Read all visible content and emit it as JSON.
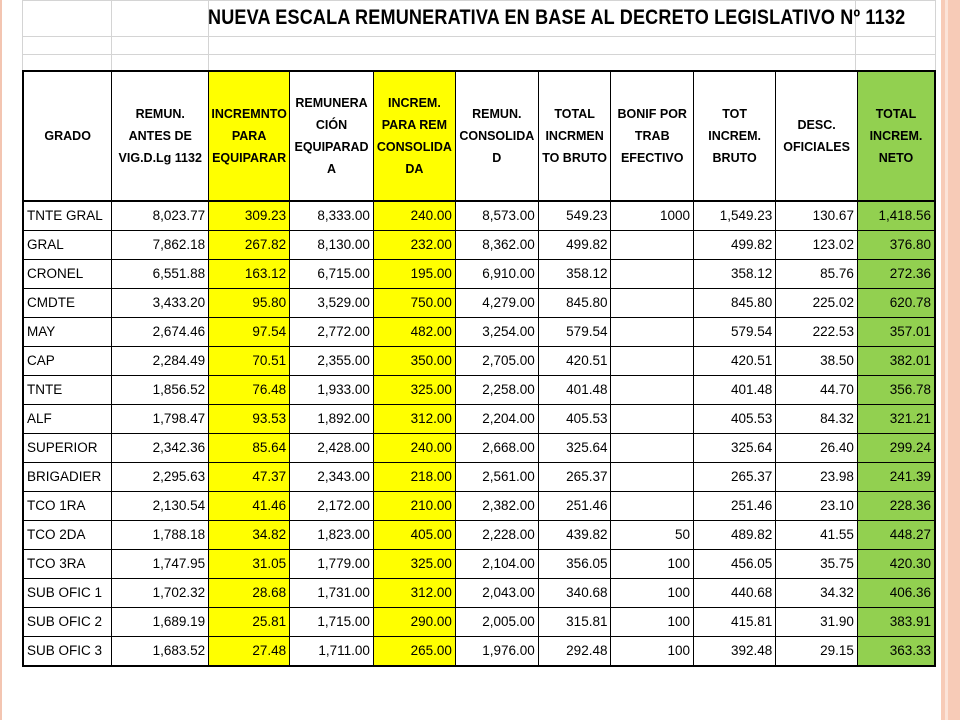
{
  "title": "NUEVA ESCALA REMUNERATIVA EN BASE AL DECRETO LEGISLATIVO Nº 1132",
  "colors": {
    "yellow_highlight": "#ffff00",
    "green_highlight": "#92d050",
    "slide_border": "#f7cbb7"
  },
  "headers": [
    "GRADO",
    "REMUN. ANTES DE VIG.D.Lg 1132",
    "INCREMNTO PARA EQUIPARAR",
    "REMUNERA CIÓN EQUIPARAD A",
    "INCREM. PARA REM CONSOLIDA DA",
    "REMUN. CONSOLIDA D",
    "TOTAL INCRMEN TO BRUTO",
    "BONIF POR TRAB EFECTIVO",
    "TOT INCREM. BRUTO",
    "DESC. OFICIALES",
    "TOTAL INCREM. NETO"
  ],
  "rows": [
    [
      "TNTE GRAL",
      "8,023.77",
      "309.23",
      "8,333.00",
      "240.00",
      "8,573.00",
      "549.23",
      "1000",
      "1,549.23",
      "130.67",
      "1,418.56"
    ],
    [
      "GRAL",
      "7,862.18",
      "267.82",
      "8,130.00",
      "232.00",
      "8,362.00",
      "499.82",
      "",
      "499.82",
      "123.02",
      "376.80"
    ],
    [
      "CRONEL",
      "6,551.88",
      "163.12",
      "6,715.00",
      "195.00",
      "6,910.00",
      "358.12",
      "",
      "358.12",
      "85.76",
      "272.36"
    ],
    [
      "CMDTE",
      "3,433.20",
      "95.80",
      "3,529.00",
      "750.00",
      "4,279.00",
      "845.80",
      "",
      "845.80",
      "225.02",
      "620.78"
    ],
    [
      "MAY",
      "2,674.46",
      "97.54",
      "2,772.00",
      "482.00",
      "3,254.00",
      "579.54",
      "",
      "579.54",
      "222.53",
      "357.01"
    ],
    [
      "CAP",
      "2,284.49",
      "70.51",
      "2,355.00",
      "350.00",
      "2,705.00",
      "420.51",
      "",
      "420.51",
      "38.50",
      "382.01"
    ],
    [
      "TNTE",
      "1,856.52",
      "76.48",
      "1,933.00",
      "325.00",
      "2,258.00",
      "401.48",
      "",
      "401.48",
      "44.70",
      "356.78"
    ],
    [
      "ALF",
      "1,798.47",
      "93.53",
      "1,892.00",
      "312.00",
      "2,204.00",
      "405.53",
      "",
      "405.53",
      "84.32",
      "321.21"
    ],
    [
      "SUPERIOR",
      "2,342.36",
      "85.64",
      "2,428.00",
      "240.00",
      "2,668.00",
      "325.64",
      "",
      "325.64",
      "26.40",
      "299.24"
    ],
    [
      "BRIGADIER",
      "2,295.63",
      "47.37",
      "2,343.00",
      "218.00",
      "2,561.00",
      "265.37",
      "",
      "265.37",
      "23.98",
      "241.39"
    ],
    [
      "TCO 1RA",
      "2,130.54",
      "41.46",
      "2,172.00",
      "210.00",
      "2,382.00",
      "251.46",
      "",
      "251.46",
      "23.10",
      "228.36"
    ],
    [
      "TCO 2DA",
      "1,788.18",
      "34.82",
      "1,823.00",
      "405.00",
      "2,228.00",
      "439.82",
      "50",
      "489.82",
      "41.55",
      "448.27"
    ],
    [
      "TCO 3RA",
      "1,747.95",
      "31.05",
      "1,779.00",
      "325.00",
      "2,104.00",
      "356.05",
      "100",
      "456.05",
      "35.75",
      "420.30"
    ],
    [
      "SUB OFIC 1",
      "1,702.32",
      "28.68",
      "1,731.00",
      "312.00",
      "2,043.00",
      "340.68",
      "100",
      "440.68",
      "34.32",
      "406.36"
    ],
    [
      "SUB OFIC 2",
      "1,689.19",
      "25.81",
      "1,715.00",
      "290.00",
      "2,005.00",
      "315.81",
      "100",
      "415.81",
      "31.90",
      "383.91"
    ],
    [
      "SUB OFIC 3",
      "1,683.52",
      "27.48",
      "1,711.00",
      "265.00",
      "1,976.00",
      "292.48",
      "100",
      "392.48",
      "29.15",
      "363.33"
    ]
  ]
}
